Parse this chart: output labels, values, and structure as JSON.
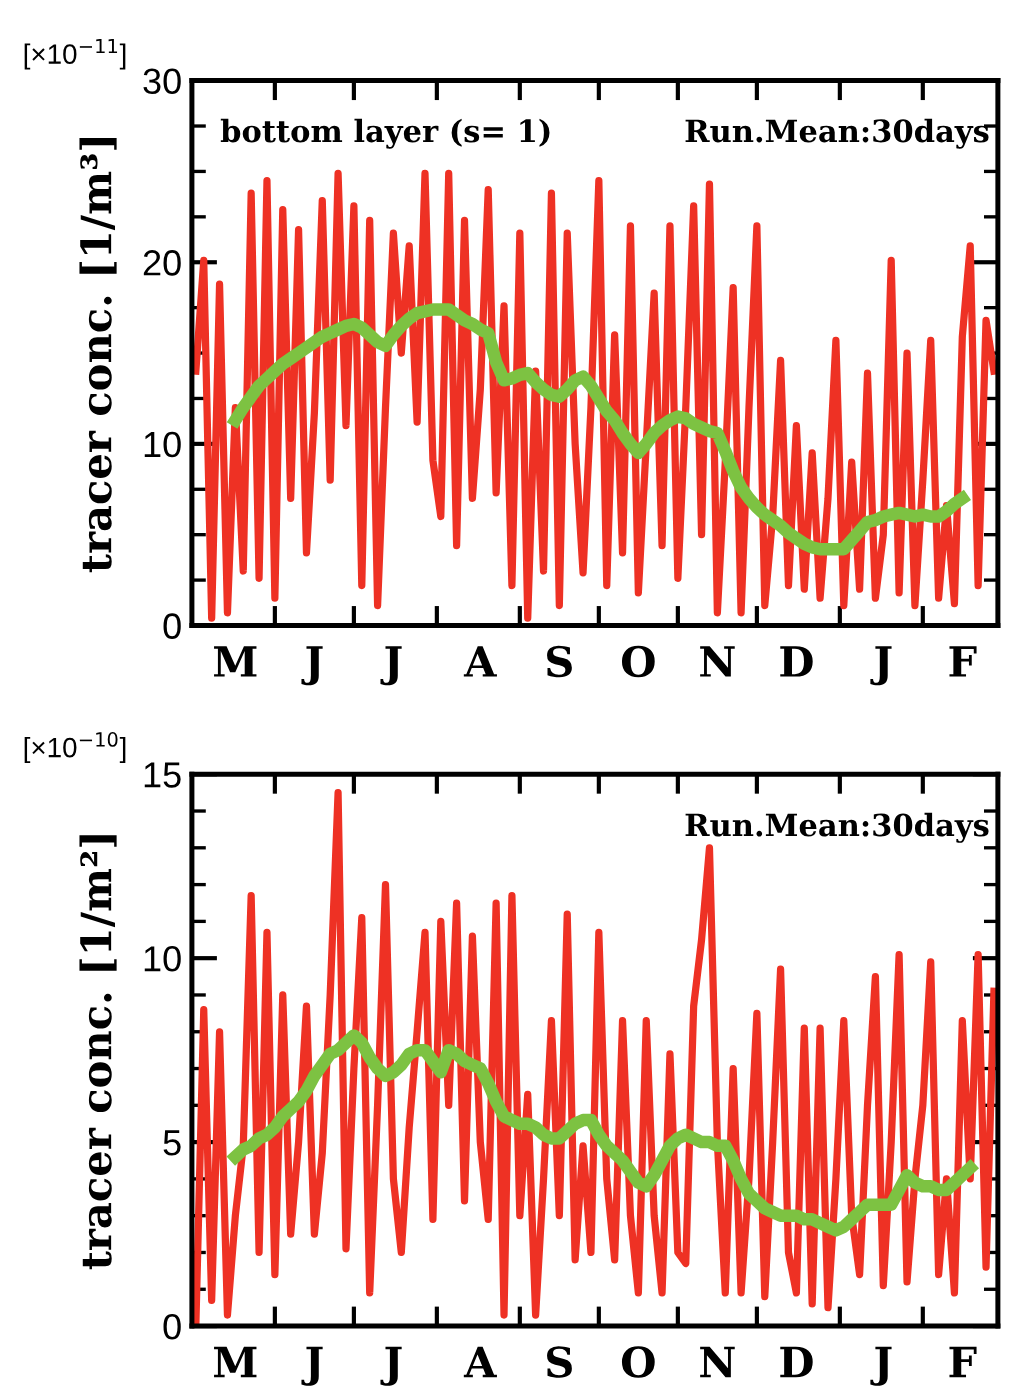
{
  "chart_data": [
    {
      "type": "line",
      "ylabel": "tracer conc. [1/m³]",
      "annotations": [
        "[×10$^{−11}$]",
        "bottom layer (s= 1)",
        "Run.Mean:30days"
      ],
      "categories": [
        null,
        null,
        null,
        null,
        null,
        "M",
        null,
        null,
        null,
        null,
        null,
        null,
        null,
        null,
        null,
        "J",
        null,
        null,
        null,
        null,
        null,
        null,
        null,
        null,
        null,
        "J",
        null,
        null,
        null,
        null,
        null,
        null,
        null,
        null,
        null,
        null,
        "A",
        null,
        null,
        null,
        null,
        null,
        null,
        null,
        null,
        null,
        "S",
        null,
        null,
        null,
        null,
        null,
        null,
        null,
        null,
        null,
        "O",
        null,
        null,
        null,
        null,
        null,
        null,
        null,
        null,
        null,
        "N",
        null,
        null,
        null,
        null,
        null,
        null,
        null,
        null,
        null,
        "D",
        null,
        null,
        null,
        null,
        null,
        null,
        null,
        null,
        null,
        null,
        "J",
        null,
        null,
        null,
        null,
        null,
        null,
        null,
        null,
        null,
        "F",
        null,
        null,
        null,
        null
      ],
      "ylim": [
        0,
        30
      ],
      "yticks": [
        0,
        {
          "value": 2.5,
          "label": null
        },
        {
          "value": 5,
          "label": null
        },
        {
          "value": 7.5,
          "label": null
        },
        10,
        {
          "value": 12.5,
          "label": null
        },
        {
          "value": 15,
          "label": null
        },
        {
          "value": 17.5,
          "label": null
        },
        20,
        {
          "value": 22.5,
          "label": null
        },
        {
          "value": 25,
          "label": null
        },
        {
          "value": 27.5,
          "label": null
        },
        30
      ],
      "grid": false,
      "legend": false,
      "marker": "none",
      "line_style": "solid",
      "series": [
        {
          "color": "#ee3124",
          "values": [
            14,
            20.1,
            0.4,
            18.8,
            0.7,
            12,
            3,
            23.8,
            2.6,
            24.5,
            1.5,
            22.9,
            7.0,
            21.8,
            4,
            11.7,
            23.4,
            8,
            24.9,
            11.0,
            23.1,
            2.2,
            22.3,
            1.1,
            12,
            21.6,
            15.0,
            20.9,
            11.2,
            24.9,
            9.1,
            6,
            24.9,
            4.4,
            22.3,
            7.0,
            13,
            24.0,
            7.3,
            17.6,
            2.2,
            21.6,
            0.4,
            14,
            3,
            23.8,
            1.1,
            21.6,
            10,
            2.9,
            12,
            24.5,
            2.2,
            16,
            4,
            22.0,
            1.8,
            10,
            18.3,
            4.4,
            22.0,
            2.6,
            12,
            23.1,
            5,
            24.3,
            0.7,
            9,
            18.6,
            0.7,
            12,
            22.0,
            1.1,
            6,
            14.6,
            2.2,
            11,
            2,
            9.5,
            1.5,
            7,
            15.7,
            1.1,
            9,
            2,
            13.9,
            1.5,
            5,
            20.1,
            1.8,
            15.0,
            1.1,
            8,
            15.7,
            1.5,
            6.6,
            1.2,
            15.9,
            20.9,
            2.2,
            16.8,
            14
          ]
        },
        {
          "color": "#7dc242",
          "values": [
            null,
            null,
            null,
            null,
            null,
            11.3,
            12.0,
            12.6,
            13.2,
            13.6,
            14.0,
            14.4,
            14.7,
            15.0,
            15.3,
            15.6,
            15.9,
            16.1,
            16.3,
            16.5,
            16.6,
            16.4,
            16.0,
            15.6,
            15.4,
            16.0,
            16.5,
            16.9,
            17.2,
            17.3,
            17.4,
            17.4,
            17.4,
            17.1,
            16.8,
            16.6,
            16.3,
            16.1,
            14.5,
            13.5,
            13.6,
            13.8,
            13.9,
            13.4,
            13.0,
            12.7,
            12.6,
            13.0,
            13.5,
            13.7,
            13.2,
            12.5,
            11.8,
            11.3,
            10.6,
            10.0,
            9.5,
            10.0,
            10.6,
            11.0,
            11.3,
            11.5,
            11.4,
            11.1,
            10.9,
            10.7,
            10.6,
            9.6,
            8.5,
            7.6,
            7.0,
            6.5,
            6.1,
            5.8,
            5.5,
            5.1,
            4.8,
            4.5,
            4.3,
            4.2,
            4.2,
            4.2,
            4.2,
            4.7,
            5.2,
            5.7,
            5.8,
            6.0,
            6.1,
            6.2,
            6.1,
            6.0,
            6.1,
            6.0,
            6.0,
            6.3,
            6.7,
            7.0,
            null,
            null,
            null,
            null
          ]
        }
      ]
    },
    {
      "type": "line",
      "ylabel": "tracer conc. [1/m²]",
      "annotations": [
        "[×10$^{−10}$]",
        "Run.Mean:30days"
      ],
      "categories": [
        null,
        null,
        null,
        null,
        null,
        "M",
        null,
        null,
        null,
        null,
        null,
        null,
        null,
        null,
        null,
        "J",
        null,
        null,
        null,
        null,
        null,
        null,
        null,
        null,
        null,
        "J",
        null,
        null,
        null,
        null,
        null,
        null,
        null,
        null,
        null,
        null,
        "A",
        null,
        null,
        null,
        null,
        null,
        null,
        null,
        null,
        null,
        "S",
        null,
        null,
        null,
        null,
        null,
        null,
        null,
        null,
        null,
        "O",
        null,
        null,
        null,
        null,
        null,
        null,
        null,
        null,
        null,
        "N",
        null,
        null,
        null,
        null,
        null,
        null,
        null,
        null,
        null,
        "D",
        null,
        null,
        null,
        null,
        null,
        null,
        null,
        null,
        null,
        null,
        "J",
        null,
        null,
        null,
        null,
        null,
        null,
        null,
        null,
        null,
        "F",
        null,
        null,
        null,
        null
      ],
      "ylim": [
        0,
        15
      ],
      "yticks": [
        0,
        {
          "value": 1,
          "label": null
        },
        {
          "value": 2,
          "label": null
        },
        {
          "value": 3,
          "label": null
        },
        {
          "value": 4,
          "label": null
        },
        5,
        {
          "value": 6,
          "label": null
        },
        {
          "value": 7,
          "label": null
        },
        {
          "value": 8,
          "label": null
        },
        {
          "value": 9,
          "label": null
        },
        10,
        {
          "value": 11,
          "label": null
        },
        {
          "value": 12,
          "label": null
        },
        {
          "value": 13,
          "label": null
        },
        {
          "value": 14,
          "label": null
        },
        15
      ],
      "grid": false,
      "legend": false,
      "marker": "none",
      "line_style": "solid",
      "series": [
        {
          "color": "#ee3124",
          "values": [
            0,
            8.6,
            0.7,
            8.0,
            0.3,
            3,
            4.9,
            11.7,
            2.0,
            10.7,
            1.4,
            9.0,
            2.5,
            5,
            8.7,
            2.5,
            4.7,
            9,
            14.5,
            2.1,
            7,
            11.1,
            0.9,
            6,
            12.0,
            4,
            2.0,
            5.4,
            8,
            10.7,
            2.9,
            11.0,
            6,
            11.5,
            3.4,
            10.6,
            5,
            2.9,
            11.5,
            0.3,
            11.7,
            3,
            6.3,
            0.3,
            4,
            8.3,
            3,
            11.2,
            1.8,
            4.9,
            2,
            10.7,
            4,
            1.8,
            8.3,
            3,
            0.9,
            8.3,
            3,
            0.9,
            7.4,
            2,
            1.7,
            8.7,
            10.5,
            13.0,
            5,
            0.9,
            7.0,
            0.9,
            4,
            8.5,
            0.8,
            5,
            9.7,
            2,
            0.9,
            8.1,
            0.6,
            8.1,
            0.5,
            4,
            8.3,
            3,
            1.4,
            6,
            9.5,
            1.1,
            5,
            10.1,
            1.2,
            4,
            6,
            9.9,
            1.4,
            4,
            0.9,
            8.3,
            4,
            10.1,
            1.6,
            9.1
          ]
        },
        {
          "color": "#7dc242",
          "values": [
            null,
            null,
            null,
            null,
            null,
            4.6,
            4.8,
            4.9,
            5.1,
            5.2,
            5.4,
            5.7,
            5.9,
            6.1,
            6.4,
            6.8,
            7.1,
            7.4,
            7.5,
            7.7,
            7.9,
            7.7,
            7.3,
            7.0,
            6.8,
            6.9,
            7.1,
            7.4,
            7.5,
            7.5,
            7.2,
            6.9,
            7.5,
            7.4,
            7.2,
            7.1,
            7.0,
            6.6,
            6.1,
            5.7,
            5.6,
            5.5,
            5.5,
            5.4,
            5.2,
            5.1,
            5.1,
            5.3,
            5.5,
            5.6,
            5.6,
            5.2,
            4.9,
            4.7,
            4.5,
            4.2,
            3.9,
            3.8,
            4.1,
            4.5,
            4.9,
            5.1,
            5.2,
            5.1,
            5.0,
            5.0,
            4.9,
            4.9,
            4.5,
            4.0,
            3.6,
            3.4,
            3.2,
            3.1,
            3.0,
            3.0,
            3.0,
            2.9,
            2.9,
            2.8,
            2.7,
            2.6,
            2.7,
            2.9,
            3.1,
            3.3,
            3.3,
            3.3,
            3.3,
            3.7,
            4.1,
            3.9,
            3.8,
            3.8,
            3.7,
            3.7,
            3.9,
            4.1,
            4.3,
            null,
            null,
            null
          ]
        }
      ]
    }
  ]
}
